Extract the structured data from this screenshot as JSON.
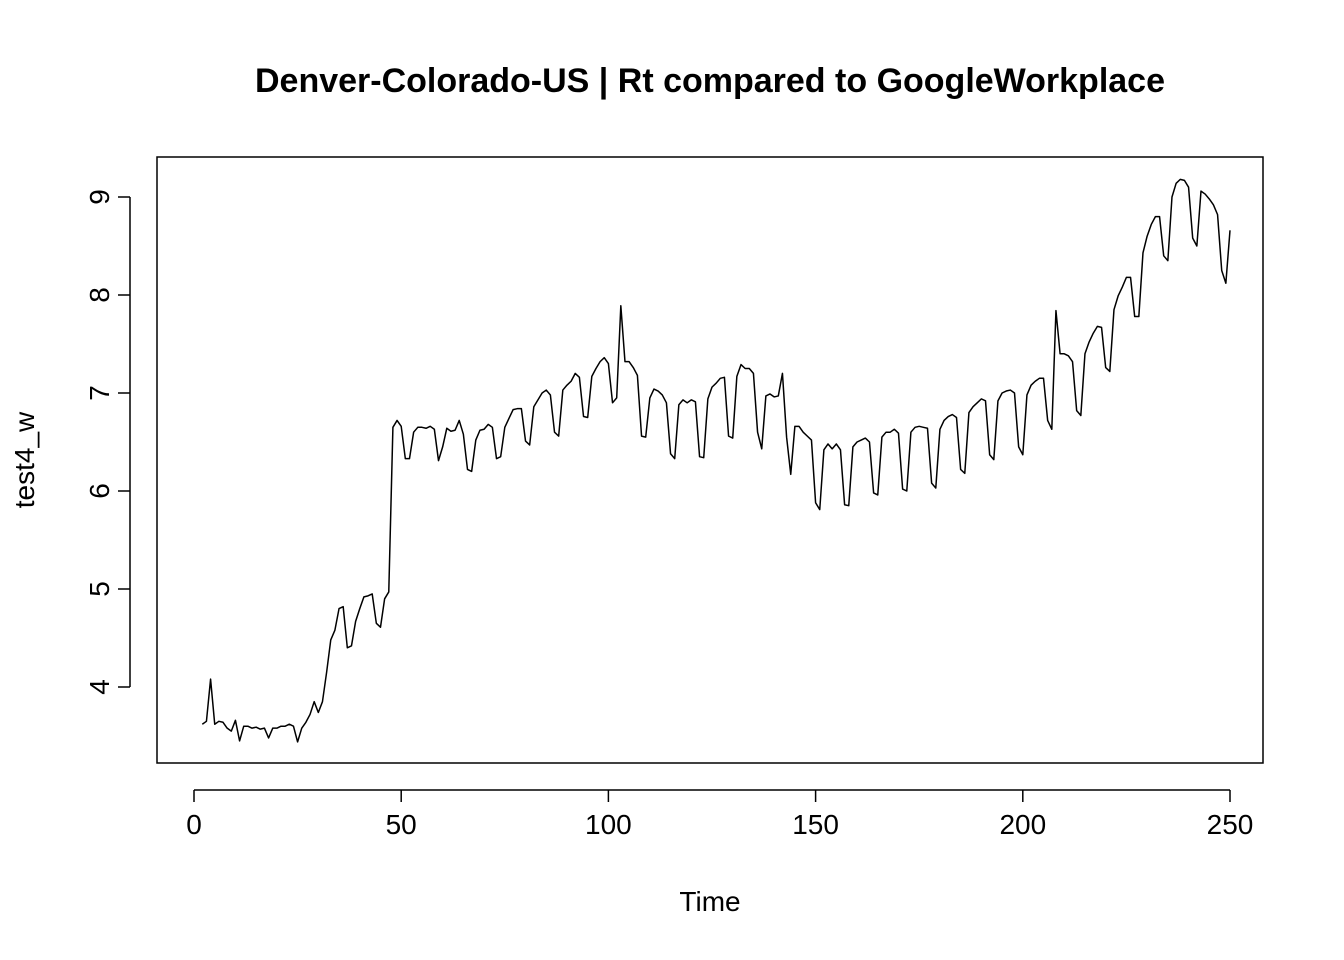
{
  "chart_data": {
    "type": "line",
    "title": "Denver-Colorado-US | Rt compared to GoogleWorkplace",
    "xlabel": "Time",
    "ylabel": "test4_w",
    "xlim": [
      0,
      250
    ],
    "ylim": [
      3.4,
      9.2
    ],
    "x_ticks": [
      0,
      50,
      100,
      150,
      200,
      250
    ],
    "y_ticks": [
      4,
      5,
      6,
      7,
      8,
      9
    ],
    "grid": false,
    "color": "#000000",
    "series": [
      {
        "x_start": 2,
        "x_step": 1,
        "values": [
          3.62,
          3.65,
          4.08,
          3.62,
          3.65,
          3.64,
          3.58,
          3.55,
          3.66,
          3.45,
          3.6,
          3.6,
          3.58,
          3.59,
          3.57,
          3.58,
          3.48,
          3.58,
          3.58,
          3.6,
          3.6,
          3.62,
          3.6,
          3.44,
          3.58,
          3.64,
          3.72,
          3.85,
          3.74,
          3.85,
          4.15,
          4.48,
          4.58,
          4.8,
          4.82,
          4.4,
          4.42,
          4.67,
          4.8,
          4.92,
          4.93,
          4.95,
          4.65,
          4.61,
          4.9,
          4.97,
          6.65,
          6.72,
          6.66,
          6.33,
          6.33,
          6.6,
          6.65,
          6.65,
          6.64,
          6.66,
          6.63,
          6.31,
          6.45,
          6.64,
          6.61,
          6.62,
          6.72,
          6.58,
          6.22,
          6.2,
          6.52,
          6.62,
          6.63,
          6.68,
          6.65,
          6.33,
          6.35,
          6.65,
          6.74,
          6.83,
          6.84,
          6.84,
          6.51,
          6.47,
          6.86,
          6.93,
          7.0,
          7.03,
          6.98,
          6.6,
          6.56,
          7.03,
          7.08,
          7.12,
          7.2,
          7.16,
          6.76,
          6.75,
          7.17,
          7.25,
          7.32,
          7.36,
          7.3,
          6.9,
          6.95,
          7.89,
          7.32,
          7.32,
          7.26,
          7.18,
          6.56,
          6.55,
          6.95,
          7.04,
          7.02,
          6.98,
          6.9,
          6.38,
          6.33,
          6.88,
          6.93,
          6.9,
          6.93,
          6.91,
          6.35,
          6.34,
          6.94,
          7.06,
          7.1,
          7.15,
          7.16,
          6.56,
          6.54,
          7.17,
          7.29,
          7.25,
          7.25,
          7.2,
          6.6,
          6.43,
          6.97,
          6.99,
          6.96,
          6.97,
          7.2,
          6.55,
          6.17,
          6.66,
          6.66,
          6.6,
          6.56,
          6.52,
          5.88,
          5.81,
          6.42,
          6.48,
          6.43,
          6.48,
          6.42,
          5.86,
          5.85,
          6.45,
          6.5,
          6.52,
          6.54,
          6.5,
          5.98,
          5.96,
          6.55,
          6.6,
          6.6,
          6.63,
          6.59,
          6.02,
          6.0,
          6.6,
          6.65,
          6.66,
          6.65,
          6.64,
          6.08,
          6.03,
          6.63,
          6.72,
          6.76,
          6.78,
          6.75,
          6.22,
          6.18,
          6.8,
          6.86,
          6.9,
          6.94,
          6.92,
          6.37,
          6.32,
          6.92,
          7.0,
          7.02,
          7.03,
          7.0,
          6.45,
          6.37,
          6.98,
          7.08,
          7.12,
          7.15,
          7.15,
          6.72,
          6.63,
          7.84,
          7.4,
          7.4,
          7.38,
          7.32,
          6.82,
          6.77,
          7.4,
          7.52,
          7.61,
          7.68,
          7.67,
          7.26,
          7.22,
          7.85,
          7.99,
          8.08,
          8.18,
          8.18,
          7.78,
          7.78,
          8.43,
          8.6,
          8.72,
          8.8,
          8.8,
          8.4,
          8.35,
          9.0,
          9.14,
          9.18,
          9.17,
          9.1,
          8.58,
          8.5,
          9.06,
          9.03,
          8.98,
          8.92,
          8.82,
          8.25,
          8.12,
          8.66
        ]
      }
    ]
  }
}
